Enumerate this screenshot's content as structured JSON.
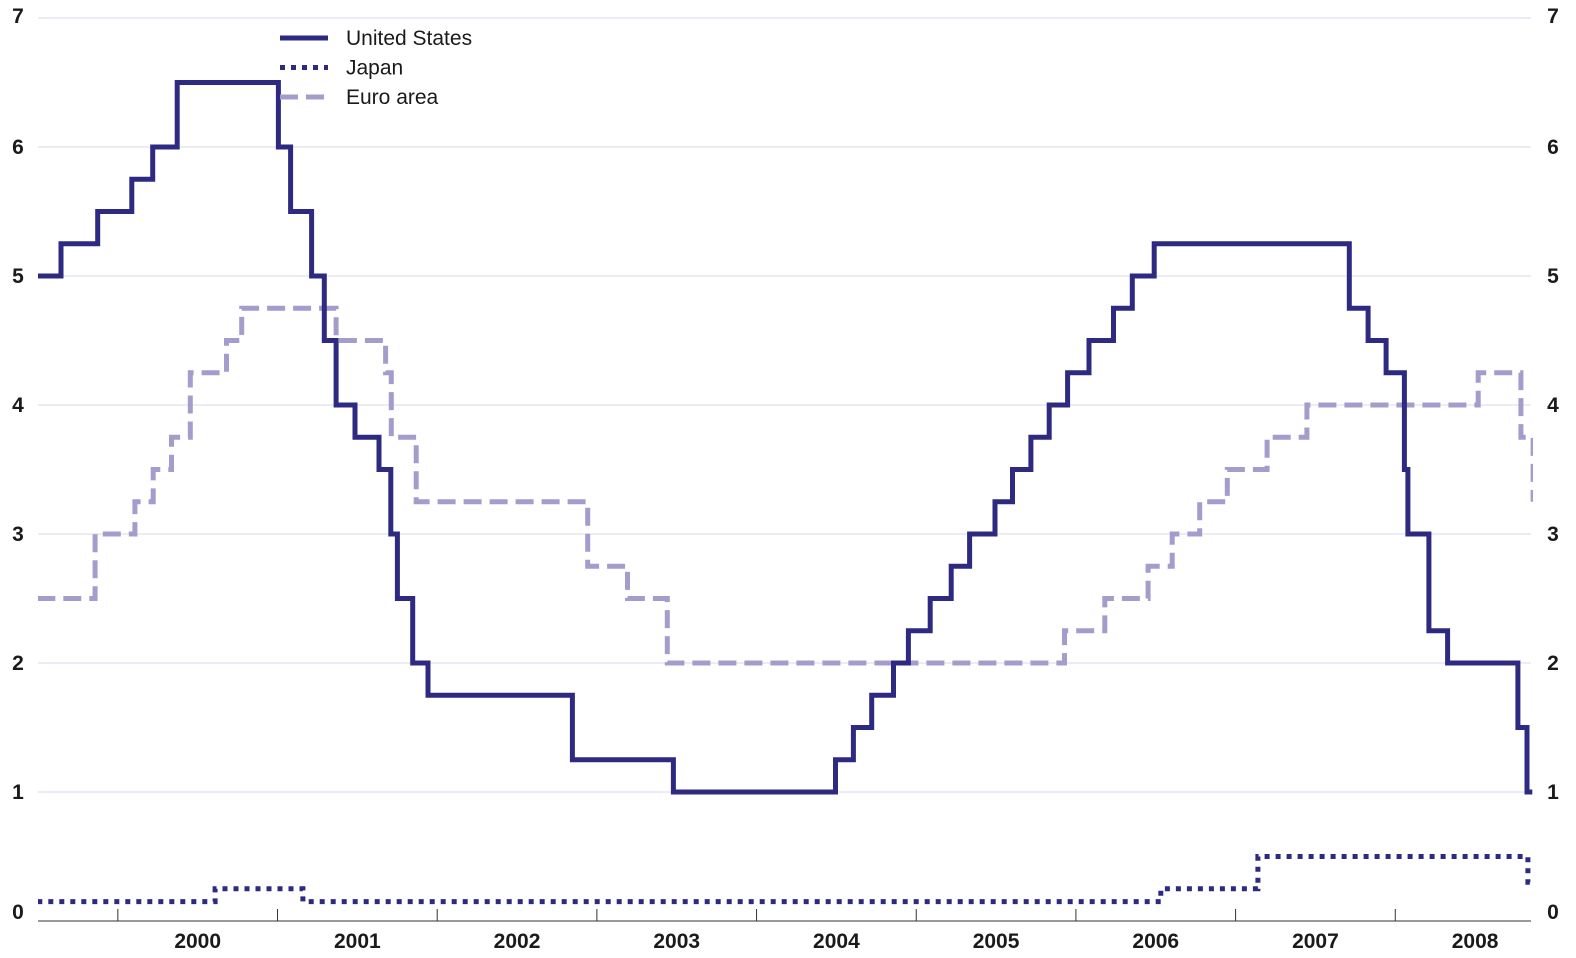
{
  "chart_data": {
    "type": "line",
    "step": true,
    "title": "",
    "xlabel": "",
    "ylabel": "",
    "ylim": [
      0,
      7
    ],
    "yticks": [
      0,
      1,
      2,
      3,
      4,
      5,
      6,
      7
    ],
    "ytick_labels": [
      "0",
      "1",
      "2",
      "3",
      "4",
      "5",
      "6",
      "7"
    ],
    "xlim": [
      1999.5,
      2008.85
    ],
    "xticks": [
      2000,
      2001,
      2002,
      2003,
      2004,
      2005,
      2006,
      2007,
      2008
    ],
    "xtick_labels": [
      "2000",
      "2001",
      "2002",
      "2003",
      "2004",
      "2005",
      "2006",
      "2007",
      "2008"
    ],
    "grid": "horizontal",
    "legend_position": "top-left",
    "series": [
      {
        "name": "United States",
        "color": "#2e2a82",
        "style": "solid",
        "points": [
          [
            "1999-07-01",
            5.0
          ],
          [
            "1999-08-24",
            5.25
          ],
          [
            "1999-11-16",
            5.5
          ],
          [
            "2000-02-02",
            5.75
          ],
          [
            "2000-03-21",
            6.0
          ],
          [
            "2000-05-16",
            6.5
          ],
          [
            "2001-01-03",
            6.0
          ],
          [
            "2001-01-31",
            5.5
          ],
          [
            "2001-03-20",
            5.0
          ],
          [
            "2001-04-18",
            4.5
          ],
          [
            "2001-05-15",
            4.0
          ],
          [
            "2001-06-27",
            3.75
          ],
          [
            "2001-08-21",
            3.5
          ],
          [
            "2001-09-17",
            3.0
          ],
          [
            "2001-10-02",
            2.5
          ],
          [
            "2001-11-06",
            2.0
          ],
          [
            "2001-12-11",
            1.75
          ],
          [
            "2002-11-06",
            1.25
          ],
          [
            "2003-06-25",
            1.0
          ],
          [
            "2004-06-30",
            1.25
          ],
          [
            "2004-08-10",
            1.5
          ],
          [
            "2004-09-21",
            1.75
          ],
          [
            "2004-11-10",
            2.0
          ],
          [
            "2004-12-14",
            2.25
          ],
          [
            "2005-02-02",
            2.5
          ],
          [
            "2005-03-22",
            2.75
          ],
          [
            "2005-05-03",
            3.0
          ],
          [
            "2005-06-30",
            3.25
          ],
          [
            "2005-08-09",
            3.5
          ],
          [
            "2005-09-20",
            3.75
          ],
          [
            "2005-11-01",
            4.0
          ],
          [
            "2005-12-13",
            4.25
          ],
          [
            "2006-01-31",
            4.5
          ],
          [
            "2006-03-28",
            4.75
          ],
          [
            "2006-05-10",
            5.0
          ],
          [
            "2006-06-29",
            5.25
          ],
          [
            "2007-09-18",
            4.75
          ],
          [
            "2007-10-31",
            4.5
          ],
          [
            "2007-12-11",
            4.25
          ],
          [
            "2008-01-22",
            3.5
          ],
          [
            "2008-01-30",
            3.0
          ],
          [
            "2008-03-18",
            2.25
          ],
          [
            "2008-04-30",
            2.0
          ],
          [
            "2008-10-08",
            1.5
          ],
          [
            "2008-10-29",
            1.0
          ],
          [
            "2008-11-10",
            1.0
          ]
        ]
      },
      {
        "name": "Japan",
        "color": "#2e2a82",
        "style": "dotted",
        "points": [
          [
            "1999-07-01",
            0.15
          ],
          [
            "2000-08-11",
            0.25
          ],
          [
            "2001-02-28",
            0.15
          ],
          [
            "2006-07-14",
            0.25
          ],
          [
            "2007-02-21",
            0.5
          ],
          [
            "2008-10-31",
            0.3
          ],
          [
            "2008-11-10",
            0.3
          ]
        ]
      },
      {
        "name": "Euro area",
        "color": "#a39ccd",
        "style": "dashed",
        "points": [
          [
            "1999-07-01",
            2.5
          ],
          [
            "1999-11-10",
            3.0
          ],
          [
            "2000-02-09",
            3.25
          ],
          [
            "2000-03-22",
            3.5
          ],
          [
            "2000-05-03",
            3.75
          ],
          [
            "2000-06-15",
            4.25
          ],
          [
            "2000-09-06",
            4.5
          ],
          [
            "2000-10-11",
            4.75
          ],
          [
            "2001-05-15",
            4.5
          ],
          [
            "2001-09-05",
            4.25
          ],
          [
            "2001-09-18",
            3.75
          ],
          [
            "2001-11-14",
            3.25
          ],
          [
            "2002-12-11",
            2.75
          ],
          [
            "2003-03-12",
            2.5
          ],
          [
            "2003-06-11",
            2.0
          ],
          [
            "2005-12-06",
            2.25
          ],
          [
            "2006-03-08",
            2.5
          ],
          [
            "2006-06-15",
            2.75
          ],
          [
            "2006-08-09",
            3.0
          ],
          [
            "2006-10-11",
            3.25
          ],
          [
            "2006-12-13",
            3.5
          ],
          [
            "2007-03-14",
            3.75
          ],
          [
            "2007-06-13",
            4.0
          ],
          [
            "2008-07-09",
            4.25
          ],
          [
            "2008-10-15",
            3.75
          ],
          [
            "2008-11-12",
            3.25
          ]
        ]
      }
    ]
  }
}
